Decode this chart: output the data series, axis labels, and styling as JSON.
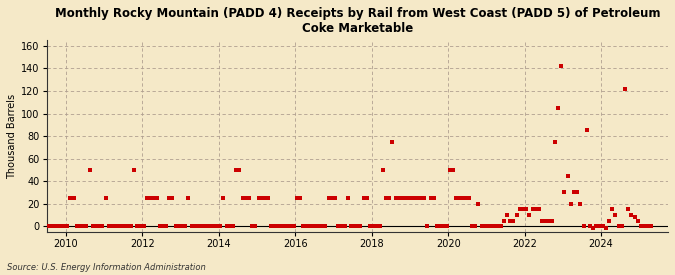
{
  "title": "Monthly Rocky Mountain (PADD 4) Receipts by Rail from West Coast (PADD 5) of Petroleum\nCoke Marketable",
  "ylabel": "Thousand Barrels",
  "source": "Source: U.S. Energy Information Administration",
  "background_color": "#f5e9c8",
  "plot_bg_color": "#f5e9c8",
  "marker_color": "#cc0000",
  "marker_size": 5,
  "ylim": [
    -5,
    165
  ],
  "yticks": [
    0,
    20,
    40,
    60,
    80,
    100,
    120,
    140,
    160
  ],
  "xlim_start": 2009.5,
  "xlim_end": 2025.75,
  "xtick_years": [
    2010,
    2012,
    2014,
    2016,
    2018,
    2020,
    2022,
    2024
  ],
  "data": {
    "2009-07": 0,
    "2009-08": 0,
    "2009-09": 0,
    "2009-10": 0,
    "2009-11": 0,
    "2009-12": 0,
    "2010-01": 0,
    "2010-02": 25,
    "2010-03": 25,
    "2010-04": 0,
    "2010-05": 0,
    "2010-06": 0,
    "2010-07": 0,
    "2010-08": 50,
    "2010-09": 0,
    "2010-10": 0,
    "2010-11": 0,
    "2010-12": 0,
    "2011-01": 25,
    "2011-02": 0,
    "2011-03": 0,
    "2011-04": 0,
    "2011-05": 0,
    "2011-06": 0,
    "2011-07": 0,
    "2011-08": 0,
    "2011-09": 0,
    "2011-10": 50,
    "2011-11": 0,
    "2011-12": 0,
    "2012-01": 0,
    "2012-02": 25,
    "2012-03": 25,
    "2012-04": 25,
    "2012-05": 25,
    "2012-06": 0,
    "2012-07": 0,
    "2012-08": 0,
    "2012-09": 25,
    "2012-10": 25,
    "2012-11": 0,
    "2012-12": 0,
    "2013-01": 0,
    "2013-02": 0,
    "2013-03": 25,
    "2013-04": 0,
    "2013-05": 0,
    "2013-06": 0,
    "2013-07": 0,
    "2013-08": 0,
    "2013-09": 0,
    "2013-10": 0,
    "2013-11": 0,
    "2013-12": 0,
    "2014-01": 0,
    "2014-02": 25,
    "2014-03": 0,
    "2014-04": 0,
    "2014-05": 0,
    "2014-06": 50,
    "2014-07": 50,
    "2014-08": 25,
    "2014-09": 25,
    "2014-10": 25,
    "2014-11": 0,
    "2014-12": 0,
    "2015-01": 25,
    "2015-02": 25,
    "2015-03": 25,
    "2015-04": 25,
    "2015-05": 0,
    "2015-06": 0,
    "2015-07": 0,
    "2015-08": 0,
    "2015-09": 0,
    "2015-10": 0,
    "2015-11": 0,
    "2015-12": 0,
    "2016-01": 25,
    "2016-02": 25,
    "2016-03": 0,
    "2016-04": 0,
    "2016-05": 0,
    "2016-06": 0,
    "2016-07": 0,
    "2016-08": 0,
    "2016-09": 0,
    "2016-10": 0,
    "2016-11": 25,
    "2016-12": 25,
    "2017-01": 25,
    "2017-02": 0,
    "2017-03": 0,
    "2017-04": 0,
    "2017-05": 25,
    "2017-06": 0,
    "2017-07": 0,
    "2017-08": 0,
    "2017-09": 0,
    "2017-10": 25,
    "2017-11": 25,
    "2017-12": 0,
    "2018-01": 0,
    "2018-02": 0,
    "2018-03": 0,
    "2018-04": 50,
    "2018-05": 25,
    "2018-06": 25,
    "2018-07": 75,
    "2018-08": 25,
    "2018-09": 25,
    "2018-10": 25,
    "2018-11": 25,
    "2018-12": 25,
    "2019-01": 25,
    "2019-02": 25,
    "2019-03": 25,
    "2019-04": 25,
    "2019-05": 25,
    "2019-06": 0,
    "2019-07": 25,
    "2019-08": 25,
    "2019-09": 0,
    "2019-10": 0,
    "2019-11": 0,
    "2019-12": 0,
    "2020-01": 50,
    "2020-02": 50,
    "2020-03": 25,
    "2020-04": 25,
    "2020-05": 25,
    "2020-06": 25,
    "2020-07": 25,
    "2020-08": 0,
    "2020-09": 0,
    "2020-10": 20,
    "2020-11": 0,
    "2020-12": 0,
    "2021-01": 0,
    "2021-02": 0,
    "2021-03": 0,
    "2021-04": 0,
    "2021-05": 0,
    "2021-06": 5,
    "2021-07": 10,
    "2021-08": 5,
    "2021-09": 5,
    "2021-10": 10,
    "2021-11": 15,
    "2021-12": 15,
    "2022-01": 15,
    "2022-02": 10,
    "2022-03": 15,
    "2022-04": 15,
    "2022-05": 15,
    "2022-06": 5,
    "2022-07": 5,
    "2022-08": 5,
    "2022-09": 5,
    "2022-10": 75,
    "2022-11": 105,
    "2022-12": 142,
    "2023-01": 30,
    "2023-02": 45,
    "2023-03": 20,
    "2023-04": 30,
    "2023-05": 30,
    "2023-06": 20,
    "2023-07": 0,
    "2023-08": 85,
    "2023-09": 0,
    "2023-10": -2,
    "2023-11": 0,
    "2023-12": 0,
    "2024-01": 0,
    "2024-02": -2,
    "2024-03": 5,
    "2024-04": 15,
    "2024-05": 10,
    "2024-06": 0,
    "2024-07": 0,
    "2024-08": 122,
    "2024-09": 15,
    "2024-10": 10,
    "2024-11": 8,
    "2024-12": 5,
    "2025-01": 0,
    "2025-02": 0,
    "2025-03": 0,
    "2025-04": 0
  }
}
